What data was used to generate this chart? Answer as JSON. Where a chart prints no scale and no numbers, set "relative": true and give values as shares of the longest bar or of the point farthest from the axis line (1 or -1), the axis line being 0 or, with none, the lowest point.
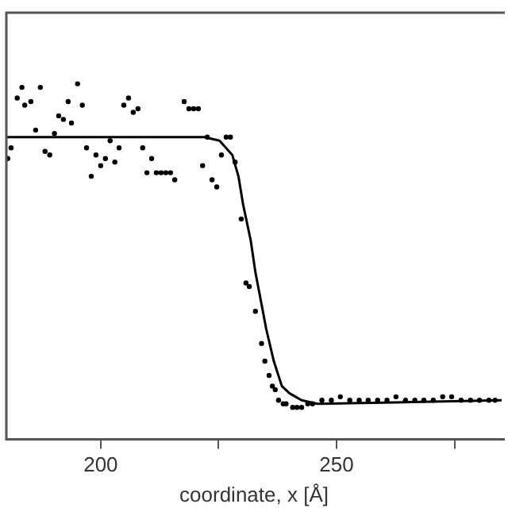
{
  "chart_data": {
    "type": "scatter",
    "xlabel": "coordinate, x [Å]",
    "relative": true,
    "xlim": [
      180,
      285
    ],
    "xticks": [
      200,
      {
        "value": 225,
        "label": null
      },
      250,
      {
        "value": 275,
        "label": null
      }
    ],
    "grid": false,
    "legend": false,
    "series": [
      {
        "type": "scatter",
        "color": "#000000",
        "marker": "circle",
        "x": [
          180.3,
          181.0,
          182.3,
          183.3,
          183.9,
          185.2,
          186.2,
          187.2,
          188.2,
          189.2,
          190.2,
          191.1,
          192.1,
          193.1,
          193.8,
          195.1,
          196.1,
          197.0,
          198.0,
          199.0,
          200.0,
          201.0,
          202.0,
          203.0,
          203.9,
          204.9,
          205.9,
          206.9,
          207.9,
          208.9,
          209.8,
          210.8,
          211.8,
          212.8,
          213.8,
          214.8,
          215.7,
          217.7,
          218.7,
          219.7,
          220.7,
          221.6,
          222.6,
          223.6,
          224.6,
          225.6,
          226.6,
          227.5,
          228.5,
          229.8,
          230.8,
          231.5,
          232.8,
          234.1,
          234.8,
          235.7,
          236.4,
          237.0,
          237.7,
          238.7,
          239.3,
          240.7,
          241.6,
          242.6,
          243.9,
          244.9,
          246.9,
          248.9,
          250.8,
          252.8,
          254.8,
          256.7,
          258.7,
          260.7,
          262.6,
          264.6,
          266.6,
          268.5,
          270.5,
          272.5,
          274.4,
          276.4,
          278.4,
          280.3,
          282.3,
          283.6
        ],
        "values": [
          0.79,
          0.82,
          0.96,
          0.99,
          0.94,
          0.95,
          0.87,
          0.99,
          0.81,
          0.8,
          0.86,
          0.91,
          0.9,
          0.95,
          0.89,
          1.0,
          0.94,
          0.82,
          0.74,
          0.8,
          0.77,
          0.79,
          0.84,
          0.78,
          0.82,
          0.94,
          0.96,
          0.92,
          0.93,
          0.82,
          0.75,
          0.79,
          0.75,
          0.75,
          0.75,
          0.75,
          0.73,
          0.95,
          0.93,
          0.93,
          0.93,
          0.77,
          0.85,
          0.73,
          0.71,
          0.8,
          0.85,
          0.85,
          0.78,
          0.62,
          0.44,
          0.43,
          0.36,
          0.27,
          0.22,
          0.18,
          0.15,
          0.14,
          0.11,
          0.1,
          0.1,
          0.09,
          0.09,
          0.09,
          0.1,
          0.1,
          0.11,
          0.11,
          0.12,
          0.11,
          0.11,
          0.11,
          0.11,
          0.11,
          0.12,
          0.11,
          0.11,
          0.11,
          0.11,
          0.12,
          0.12,
          0.11,
          0.11,
          0.11,
          0.11,
          0.11
        ]
      },
      {
        "type": "line",
        "color": "#000000",
        "marker": "none",
        "line_style": "solid",
        "x": [
          180.0,
          222.0,
          225.2,
          227.9,
          229.2,
          230.2,
          231.8,
          232.8,
          234.1,
          235.1,
          236.7,
          238.4,
          240.0,
          242.6,
          245.9,
          285.0
        ],
        "values": [
          0.85,
          0.85,
          0.84,
          0.8,
          0.74,
          0.66,
          0.56,
          0.47,
          0.38,
          0.31,
          0.22,
          0.15,
          0.13,
          0.11,
          0.1,
          0.11
        ]
      }
    ]
  }
}
